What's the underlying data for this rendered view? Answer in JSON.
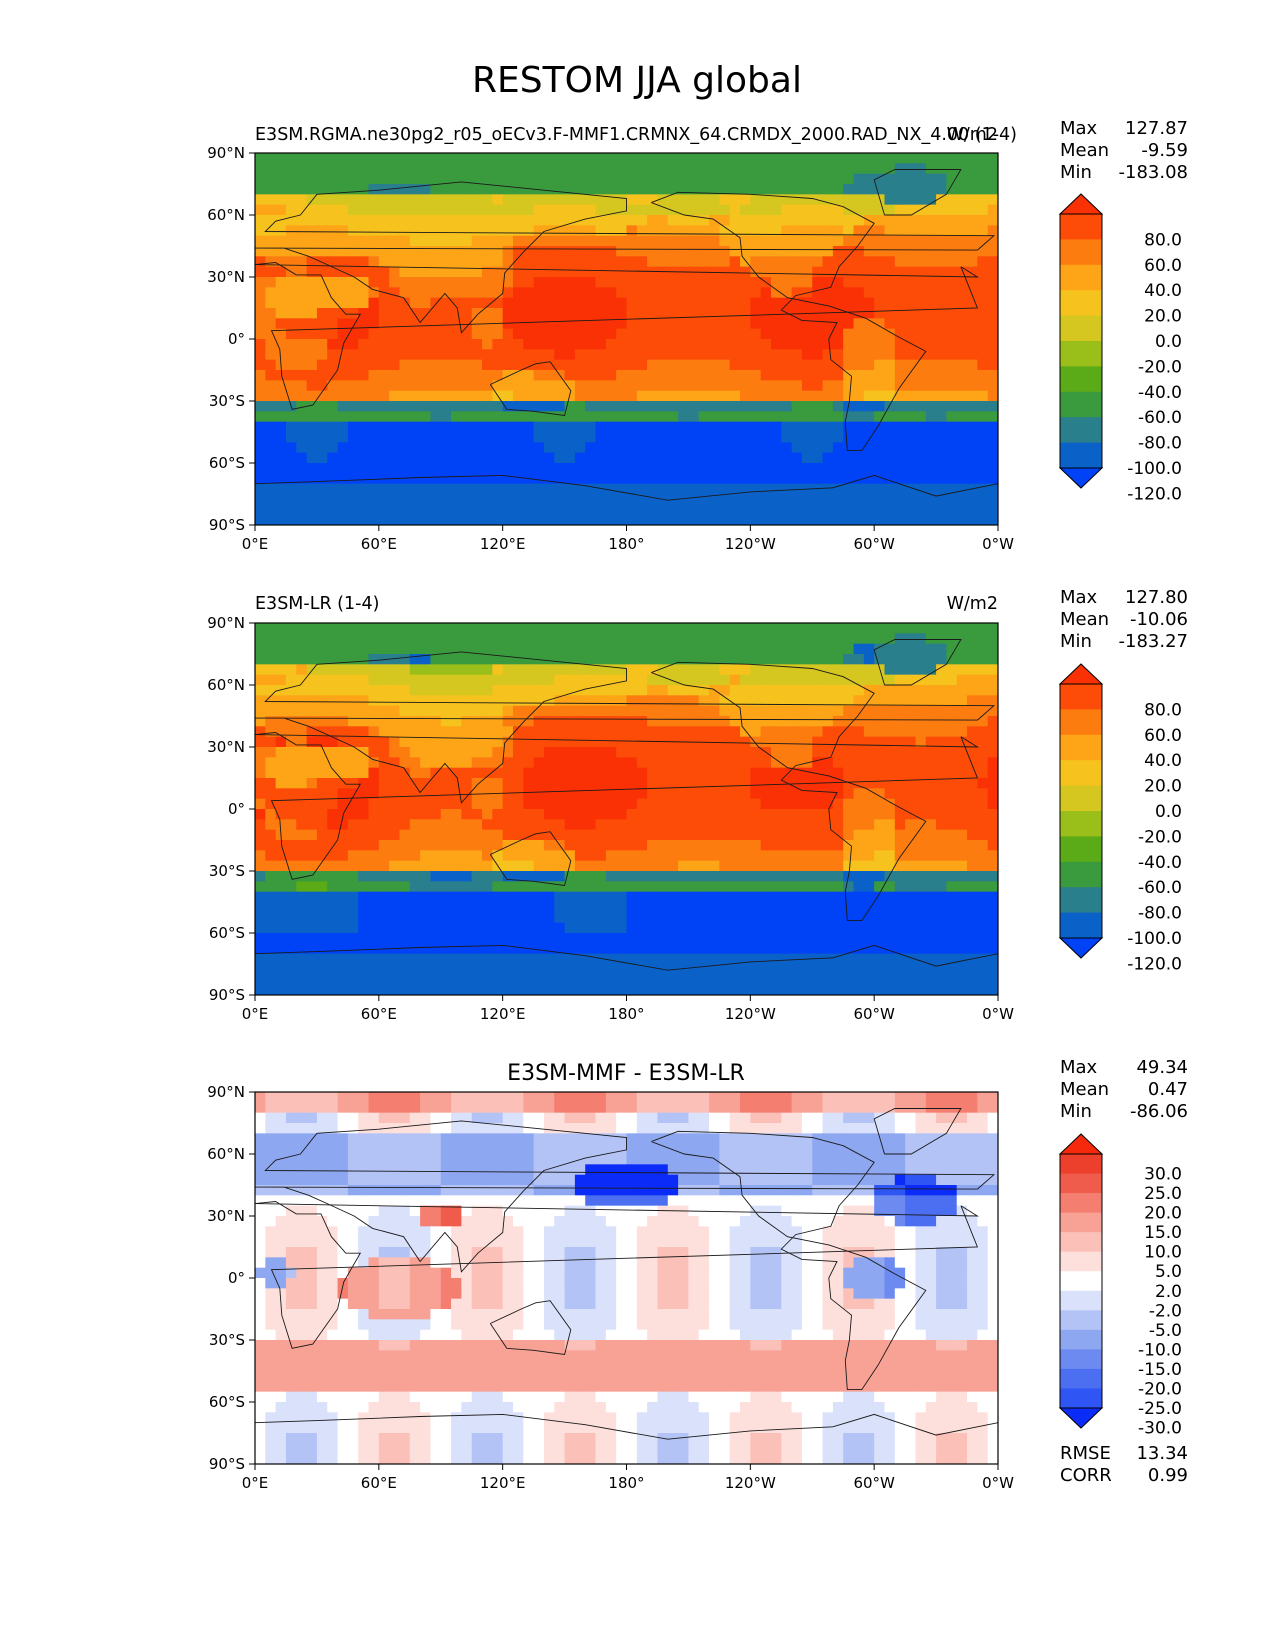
{
  "figure": {
    "title": "RESTOM JJA global"
  },
  "colors": {
    "cmap_main": [
      "#0042f5",
      "#0a62c9",
      "#2a7f8d",
      "#3a9a3e",
      "#5aab17",
      "#9bbf1a",
      "#d5c71f",
      "#f6c21d",
      "#fda516",
      "#fc7c0f",
      "#fc4c07",
      "#fb3106"
    ],
    "cmap_diff": [
      "#0b2cf8",
      "#2f55f4",
      "#4b6ff0",
      "#6c8aef",
      "#8ea7f1",
      "#b3c3f6",
      "#d9e1fb",
      "#ffffff",
      "#fde0dc",
      "#fbc1b8",
      "#f8a296",
      "#f47f70",
      "#f05c4b",
      "#ec3f2c",
      "#f7290d"
    ],
    "coast": "#1a1a1a"
  },
  "chart_data": [
    {
      "type": "heatmap",
      "title_left": "E3SM.RGMA.ne30pg2_r05_oECv3.F-MMF1.CRMNX_64.CRMDX_2000.RAD_NX_4.00 (1-4)",
      "title_center": "",
      "title_right": "W/m2",
      "xlabel": "",
      "ylabel": "",
      "xlim": [
        0,
        360
      ],
      "ylim": [
        -90,
        90
      ],
      "x_ticks": [
        "0°E",
        "60°E",
        "120°E",
        "180°",
        "120°W",
        "60°W",
        "0°W"
      ],
      "y_ticks": [
        "90°S",
        "60°S",
        "30°S",
        "0°",
        "30°N",
        "60°N",
        "90°N"
      ],
      "stats": [
        [
          "Max",
          "127.87"
        ],
        [
          "Mean",
          "-9.59"
        ],
        [
          "Min",
          "-183.08"
        ]
      ],
      "extra_stats": [],
      "colorbar": {
        "levels": [
          -120,
          -100,
          -80,
          -60,
          -40,
          -20,
          0,
          20,
          40,
          60,
          80
        ],
        "labels": [
          "80.0",
          "60.0",
          "40.0",
          "20.0",
          "0.0",
          "-20.0",
          "-40.0",
          "-60.0",
          "-80.0",
          "-100.0",
          "-120.0"
        ],
        "cmap": "main"
      },
      "field": "model"
    },
    {
      "type": "heatmap",
      "title_left": "E3SM-LR (1-4)",
      "title_center": "",
      "title_right": "W/m2",
      "xlabel": "",
      "ylabel": "",
      "xlim": [
        0,
        360
      ],
      "ylim": [
        -90,
        90
      ],
      "x_ticks": [
        "0°E",
        "60°E",
        "120°E",
        "180°",
        "120°W",
        "60°W",
        "0°W"
      ],
      "y_ticks": [
        "90°S",
        "60°S",
        "30°S",
        "0°",
        "30°N",
        "60°N",
        "90°N"
      ],
      "stats": [
        [
          "Max",
          "127.80"
        ],
        [
          "Mean",
          "-10.06"
        ],
        [
          "Min",
          "-183.27"
        ]
      ],
      "extra_stats": [],
      "colorbar": {
        "levels": [
          -120,
          -100,
          -80,
          -60,
          -40,
          -20,
          0,
          20,
          40,
          60,
          80
        ],
        "labels": [
          "80.0",
          "60.0",
          "40.0",
          "20.0",
          "0.0",
          "-20.0",
          "-40.0",
          "-60.0",
          "-80.0",
          "-100.0",
          "-120.0"
        ],
        "cmap": "main"
      },
      "field": "ref"
    },
    {
      "type": "heatmap",
      "title_left": "",
      "title_center": "E3SM-MMF - E3SM-LR",
      "title_right": "",
      "xlabel": "",
      "ylabel": "",
      "xlim": [
        0,
        360
      ],
      "ylim": [
        -90,
        90
      ],
      "x_ticks": [
        "0°E",
        "60°E",
        "120°E",
        "180°",
        "120°W",
        "60°W",
        "0°W"
      ],
      "y_ticks": [
        "90°S",
        "60°S",
        "30°S",
        "0°",
        "30°N",
        "60°N",
        "90°N"
      ],
      "stats": [
        [
          "Max",
          "49.34"
        ],
        [
          "Mean",
          "0.47"
        ],
        [
          "Min",
          "-86.06"
        ]
      ],
      "extra_stats": [
        [
          "RMSE",
          "13.34"
        ],
        [
          "CORR",
          "0.99"
        ]
      ],
      "colorbar": {
        "levels": [
          -30,
          -25,
          -20,
          -15,
          -10,
          -5,
          -2,
          2,
          5,
          10,
          15,
          20,
          25,
          30
        ],
        "labels": [
          "30.0",
          "25.0",
          "20.0",
          "15.0",
          "10.0",
          "5.0",
          "2.0",
          "-2.0",
          "-5.0",
          "-10.0",
          "-15.0",
          "-20.0",
          "-25.0",
          "-30.0"
        ],
        "cmap": "diff"
      },
      "field": "diff"
    }
  ]
}
